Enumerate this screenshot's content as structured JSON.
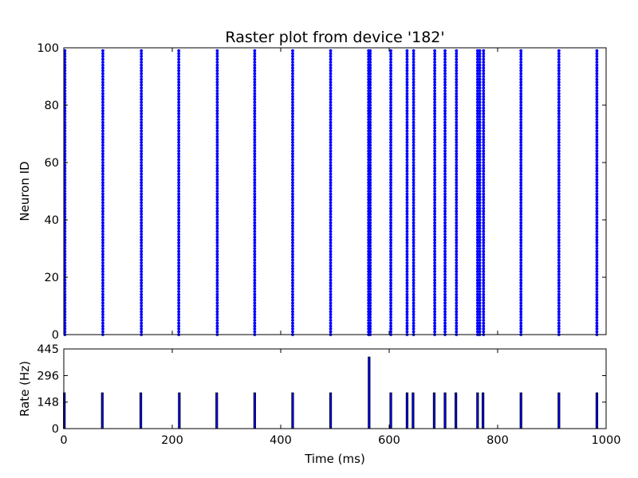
{
  "colors": {
    "spike": "#0000ff",
    "bar_fill": "#0000ff",
    "bar_edge": "#000000",
    "axes": "#000000",
    "background": "#ffffff"
  },
  "chart_data": [
    {
      "type": "scatter",
      "title": "Raster plot from device '182'",
      "xlabel": "",
      "ylabel": "Neuron ID",
      "xlim": [
        0,
        1000
      ],
      "ylim": [
        0,
        100
      ],
      "grid": false,
      "yticks": [
        "0",
        "20",
        "40",
        "60",
        "80",
        "100"
      ],
      "neuron_count": 100,
      "spike_times": [
        2,
        72,
        143,
        212,
        283,
        352,
        422,
        492,
        562,
        565,
        603,
        633,
        645,
        684,
        703,
        724,
        763,
        767,
        774,
        843,
        913,
        983
      ]
    },
    {
      "type": "bar",
      "title": "",
      "xlabel": "Time (ms)",
      "ylabel": "Rate (Hz)",
      "xlim": [
        0,
        1000
      ],
      "ylim": [
        0,
        445
      ],
      "grid": false,
      "xticks": [
        "0",
        "200",
        "400",
        "600",
        "800",
        "1000"
      ],
      "yticks": [
        "0",
        "148",
        "296",
        "445"
      ],
      "x": [
        1,
        71,
        142,
        213,
        282,
        352,
        422,
        492,
        563,
        603,
        633,
        644,
        683,
        703,
        723,
        763,
        773,
        843,
        913,
        983
      ],
      "values": [
        200,
        200,
        200,
        200,
        200,
        200,
        200,
        200,
        400,
        200,
        200,
        200,
        200,
        200,
        200,
        200,
        200,
        200,
        200,
        200
      ]
    }
  ]
}
